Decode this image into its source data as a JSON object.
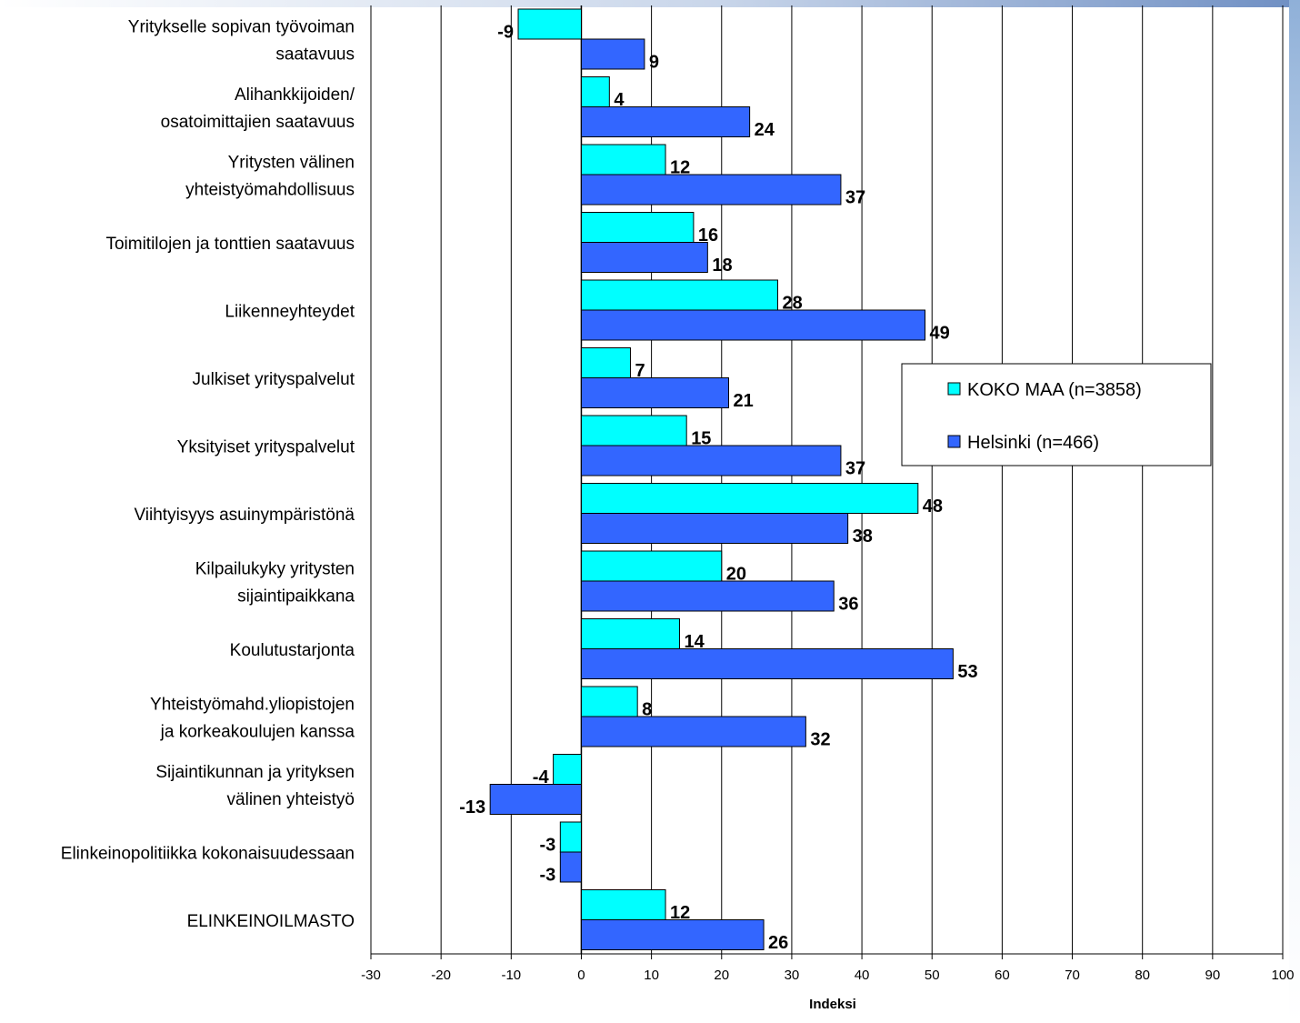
{
  "chart_data": {
    "type": "bar",
    "orientation": "horizontal",
    "xlabel": "Indeksi",
    "xlim": [
      -30,
      100
    ],
    "xticks": [
      -30,
      -20,
      -10,
      0,
      10,
      20,
      30,
      40,
      50,
      60,
      70,
      80,
      90,
      100
    ],
    "grid": true,
    "legend_position": "right",
    "categories": [
      [
        "Yritykselle sopivan työvoiman",
        "saatavuus"
      ],
      [
        "Alihankkijoiden/",
        "osatoimittajien saatavuus"
      ],
      [
        "Yritysten välinen",
        "yhteistyömahdollisuus"
      ],
      [
        "Toimitilojen ja tonttien saatavuus"
      ],
      [
        "Liikenneyhteydet"
      ],
      [
        "Julkiset yrityspalvelut"
      ],
      [
        "Yksityiset yrityspalvelut"
      ],
      [
        "Viihtyisyys asuinympäristönä"
      ],
      [
        "Kilpailukyky yritysten",
        "sijaintipaikkana"
      ],
      [
        "Koulutustarjonta"
      ],
      [
        "Yhteistyömahd.yliopistojen",
        "ja korkeakoulujen kanssa"
      ],
      [
        "Sijaintikunnan ja yrityksen",
        "välinen yhteistyö"
      ],
      [
        "Elinkeinopolitiikka kokonaisuudessaan"
      ],
      [
        "ELINKEINOILMASTO"
      ]
    ],
    "series": [
      {
        "name": "KOKO MAA (n=3858)",
        "color": "#00ffff",
        "values": [
          -9,
          4,
          12,
          16,
          28,
          7,
          15,
          48,
          20,
          14,
          8,
          -4,
          -3,
          12
        ]
      },
      {
        "name": "Helsinki (n=466)",
        "color": "#3366ff",
        "values": [
          9,
          24,
          37,
          18,
          49,
          21,
          37,
          38,
          36,
          53,
          32,
          -13,
          -3,
          26
        ]
      }
    ]
  }
}
